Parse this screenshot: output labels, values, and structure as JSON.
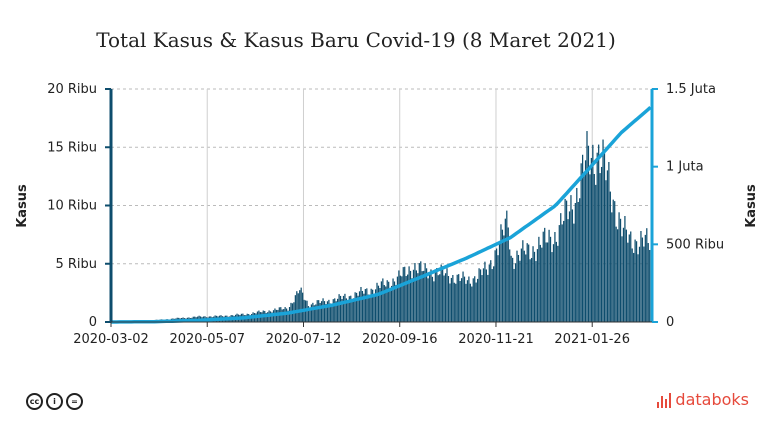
{
  "chart_data": {
    "type": "bar+line",
    "title": "Total Kasus & Kasus Baru Covid-19 (8 Maret 2021)",
    "y_left_label": "Kasus",
    "y_right_label": "Kasus",
    "y_left_ticks": [
      "0",
      "5 Ribu",
      "10 Ribu",
      "15 Ribu",
      "20 Ribu"
    ],
    "y_left_tick_values": [
      0,
      5000,
      10000,
      15000,
      20000
    ],
    "y_right_ticks": [
      "0",
      "500 Ribu",
      "1 Juta",
      "1.5 Juta"
    ],
    "y_right_tick_values": [
      0,
      500000,
      1000000,
      1500000
    ],
    "y_left_range": [
      0,
      20000
    ],
    "y_right_range": [
      0,
      1500000
    ],
    "x_range": [
      "2020-03-02",
      "2021-03-08"
    ],
    "x_ticks": [
      "2020-03-02",
      "2020-05-07",
      "2020-07-12",
      "2020-09-16",
      "2020-11-21",
      "2021-01-26"
    ],
    "grid": true,
    "bar_color": "#0e4d6d",
    "line_color": "#1aa3d8",
    "series": [
      {
        "kind": "bar",
        "axis": "left",
        "sampled_x": [
          "2020-03-02",
          "2020-03-16",
          "2020-03-31",
          "2020-04-15",
          "2020-05-01",
          "2020-05-16",
          "2020-06-01",
          "2020-06-15",
          "2020-07-01",
          "2020-07-09",
          "2020-07-15",
          "2020-08-01",
          "2020-08-15",
          "2020-09-01",
          "2020-09-15",
          "2020-09-25",
          "2020-10-01",
          "2020-10-15",
          "2020-11-01",
          "2020-11-15",
          "2020-11-29",
          "2020-12-01",
          "2020-12-15",
          "2021-01-01",
          "2021-01-15",
          "2021-01-23",
          "2021-01-30",
          "2021-02-05",
          "2021-02-15",
          "2021-02-20",
          "2021-02-28",
          "2021-03-08"
        ],
        "sampled_values": [
          0,
          100,
          150,
          300,
          450,
          500,
          650,
          900,
          1200,
          2700,
          1500,
          1900,
          2300,
          3000,
          3800,
          4800,
          4400,
          4200,
          3500,
          4500,
          8600,
          5500,
          6200,
          7500,
          11000,
          14300,
          14500,
          12300,
          8000,
          7000,
          7000,
          6500
        ]
      },
      {
        "kind": "line",
        "axis": "right",
        "sampled_x": [
          "2020-03-02",
          "2020-04-01",
          "2020-05-01",
          "2020-06-01",
          "2020-07-01",
          "2020-08-01",
          "2020-09-01",
          "2020-10-01",
          "2020-11-01",
          "2020-12-01",
          "2021-01-01",
          "2021-01-25",
          "2021-02-15",
          "2021-03-08"
        ],
        "sampled_values": [
          0,
          2000,
          10500,
          27000,
          57000,
          109000,
          177000,
          291000,
          412000,
          544000,
          751000,
          1000000,
          1220000,
          1390000
        ]
      }
    ]
  },
  "footer": {
    "license_icons": [
      "cc-icon",
      "by-icon",
      "nd-icon"
    ],
    "license_glyphs": [
      "cc",
      "i",
      "="
    ],
    "brand": "databoks"
  }
}
